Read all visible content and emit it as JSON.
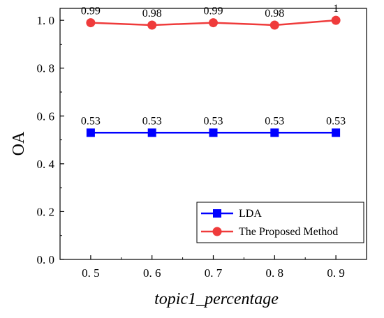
{
  "chart_data": {
    "type": "line",
    "x": [
      0.5,
      0.6,
      0.7,
      0.8,
      0.9
    ],
    "x_tick_labels": [
      "0. 5",
      "0. 6",
      "0. 7",
      "0. 8",
      "0. 9"
    ],
    "xlabel": "topic1_percentage",
    "ylabel": "OA",
    "ylim": [
      0.0,
      1.05
    ],
    "y_ticks": [
      0.0,
      0.2,
      0.4,
      0.6,
      0.8,
      1.0
    ],
    "y_tick_labels": [
      "0. 0",
      "0. 2",
      "0. 4",
      "0. 6",
      "0. 8",
      "1. 0"
    ],
    "grid": false,
    "legend_position": "bottom-right",
    "series": [
      {
        "name": "LDA",
        "color": "#0000ff",
        "marker": "square",
        "values": [
          0.53,
          0.53,
          0.53,
          0.53,
          0.53
        ],
        "data_labels": [
          "0.53",
          "0.53",
          "0.53",
          "0.53",
          "0.53"
        ]
      },
      {
        "name": "The Proposed Method",
        "color": "#ef3b3b",
        "marker": "circle",
        "values": [
          0.99,
          0.98,
          0.99,
          0.98,
          1.0
        ],
        "data_labels": [
          "0.99",
          "0.98",
          "0.99",
          "0.98",
          "1"
        ]
      }
    ]
  }
}
